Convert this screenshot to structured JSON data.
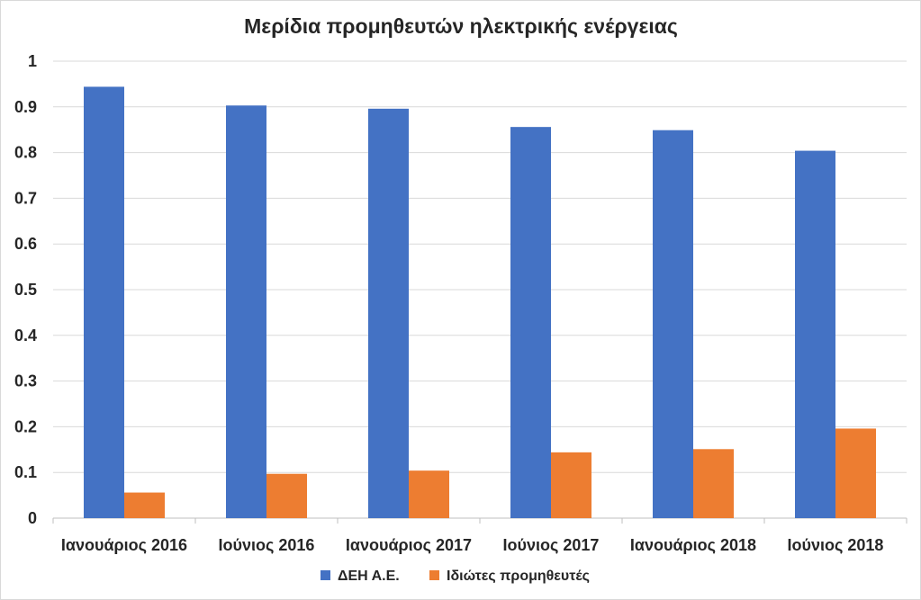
{
  "chart_data": {
    "type": "bar",
    "title": "Μερίδια προμηθευτών ηλεκτρικής ενέργειας",
    "xlabel": "",
    "ylabel": "",
    "categories": [
      "Ιανουάριος 2016",
      "Ιούνιος 2016",
      "Ιανουάριος 2017",
      "Ιούνιος 2017",
      "Ιανουάριος 2018",
      "Ιούνιος 2018"
    ],
    "series": [
      {
        "name": "ΔΕΗ Α.Ε.",
        "color": "#4472c4",
        "values": [
          0.944,
          0.903,
          0.896,
          0.856,
          0.849,
          0.804
        ]
      },
      {
        "name": "Ιδιώτες προμηθευτές",
        "color": "#ed7d31",
        "values": [
          0.056,
          0.097,
          0.104,
          0.144,
          0.151,
          0.196
        ]
      }
    ],
    "ylim": [
      0,
      1
    ],
    "yticks": [
      "0",
      "0.1",
      "0.2",
      "0.3",
      "0.4",
      "0.5",
      "0.6",
      "0.7",
      "0.8",
      "0.9",
      "1"
    ],
    "grid": true,
    "legend_position": "bottom"
  }
}
